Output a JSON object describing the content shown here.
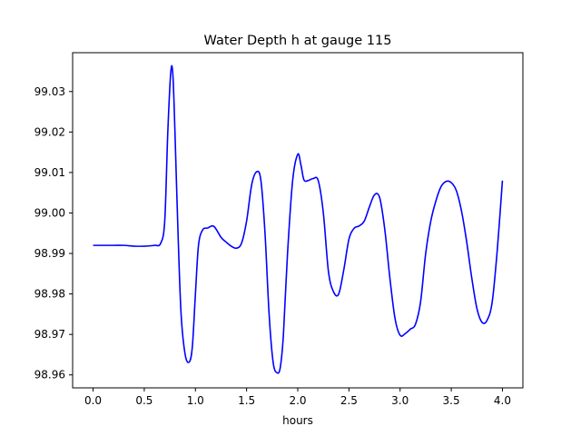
{
  "chart_data": {
    "type": "line",
    "title": "Water Depth h at gauge 115",
    "xlabel": "hours",
    "ylabel": "",
    "xlim": [
      -0.2,
      4.2
    ],
    "ylim": [
      98.9568,
      99.0396
    ],
    "xticks": [
      0.0,
      0.5,
      1.0,
      1.5,
      2.0,
      2.5,
      3.0,
      3.5,
      4.0
    ],
    "xtick_labels": [
      "0.0",
      "0.5",
      "1.0",
      "1.5",
      "2.0",
      "2.5",
      "3.0",
      "3.5",
      "4.0"
    ],
    "yticks": [
      98.96,
      98.97,
      98.98,
      98.99,
      99.0,
      99.01,
      99.02,
      99.03
    ],
    "ytick_labels": [
      "98.96",
      "98.97",
      "98.98",
      "98.99",
      "99.00",
      "99.01",
      "99.02",
      "99.03"
    ],
    "grid": false,
    "legend": "none",
    "series": [
      {
        "color": "#0000ff",
        "x": [
          0.0,
          0.1,
          0.2,
          0.3,
          0.4,
          0.5,
          0.6,
          0.66,
          0.7,
          0.73,
          0.76,
          0.78,
          0.8,
          0.83,
          0.86,
          0.9,
          0.94,
          0.97,
          1.0,
          1.03,
          1.07,
          1.12,
          1.18,
          1.25,
          1.3,
          1.35,
          1.4,
          1.45,
          1.5,
          1.55,
          1.6,
          1.64,
          1.68,
          1.72,
          1.76,
          1.8,
          1.83,
          1.86,
          1.9,
          1.95,
          2.0,
          2.03,
          2.06,
          2.1,
          2.15,
          2.2,
          2.25,
          2.3,
          2.35,
          2.4,
          2.45,
          2.5,
          2.55,
          2.6,
          2.65,
          2.7,
          2.75,
          2.8,
          2.85,
          2.9,
          2.95,
          3.0,
          3.05,
          3.1,
          3.15,
          3.2,
          3.25,
          3.3,
          3.35,
          3.4,
          3.45,
          3.5,
          3.55,
          3.6,
          3.65,
          3.7,
          3.75,
          3.8,
          3.85,
          3.9,
          3.95,
          4.0
        ],
        "y": [
          98.992,
          98.992,
          98.992,
          98.992,
          98.9918,
          98.9918,
          98.992,
          98.9925,
          98.998,
          99.02,
          99.035,
          99.034,
          99.02,
          98.995,
          98.975,
          98.965,
          98.9632,
          98.967,
          98.98,
          98.992,
          98.9958,
          98.9963,
          98.9967,
          98.994,
          98.9928,
          98.9918,
          98.9913,
          98.9925,
          98.998,
          99.007,
          99.0102,
          99.008,
          98.995,
          98.975,
          98.963,
          98.9605,
          98.962,
          98.97,
          98.99,
          99.008,
          99.0145,
          99.012,
          99.0082,
          99.008,
          99.0085,
          99.008,
          99.0,
          98.9855,
          98.9805,
          98.98,
          98.986,
          98.9935,
          98.9962,
          98.9968,
          98.998,
          99.0015,
          99.0045,
          99.0038,
          98.996,
          98.984,
          98.974,
          98.9698,
          98.9702,
          98.9713,
          98.9725,
          98.978,
          98.99,
          98.998,
          99.003,
          99.0065,
          99.0078,
          99.0075,
          99.0055,
          99.0005,
          98.993,
          98.984,
          98.9765,
          98.973,
          98.9735,
          98.978,
          98.991,
          99.008
        ]
      }
    ]
  }
}
